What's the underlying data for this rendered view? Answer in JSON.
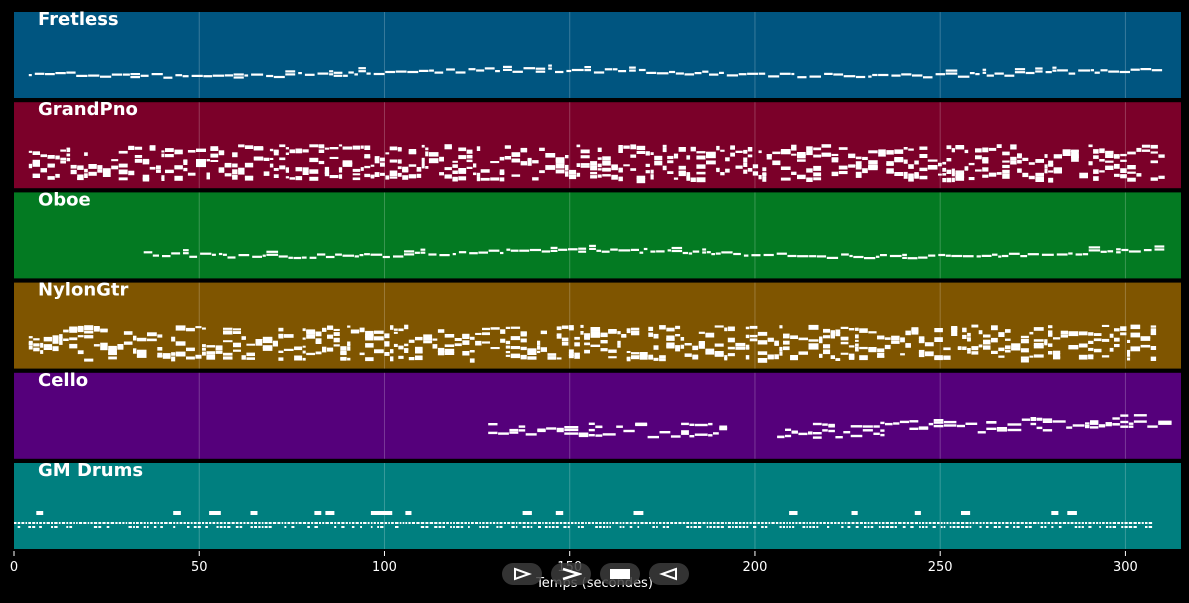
{
  "axis": {
    "title": "Temps (secondes)",
    "x_min": 0,
    "x_max": 315,
    "ticks": [
      0,
      50,
      100,
      150,
      200,
      250,
      300
    ]
  },
  "tracks": [
    {
      "name": "Fretless",
      "color": "#005580",
      "start": 4,
      "end": 310,
      "density": "sparse",
      "style": "melody"
    },
    {
      "name": "GrandPno",
      "color": "#7b0029",
      "start": 4,
      "end": 310,
      "density": "dense",
      "style": "chords"
    },
    {
      "name": "Oboe",
      "color": "#037a22",
      "start": 35,
      "end": 310,
      "density": "sparse",
      "style": "melody"
    },
    {
      "name": "NylonGtr",
      "color": "#7f5500",
      "start": 4,
      "end": 307,
      "density": "dense",
      "style": "chords"
    },
    {
      "name": "Cello",
      "color": "#55007b",
      "start": 128,
      "end": 310,
      "density": "medium",
      "style": "cello",
      "gap": [
        192,
        206
      ]
    },
    {
      "name": "GM Drums",
      "color": "#007f7f",
      "start": 0,
      "end": 307,
      "density": "dense",
      "style": "drums"
    }
  ],
  "controls": [
    {
      "name": "play-button",
      "icon": "play-outline-icon"
    },
    {
      "name": "forward-button",
      "icon": "chevron-right-icon"
    },
    {
      "name": "stop-button",
      "icon": "stop-icon"
    },
    {
      "name": "rewind-button",
      "icon": "rewind-icon"
    }
  ]
}
